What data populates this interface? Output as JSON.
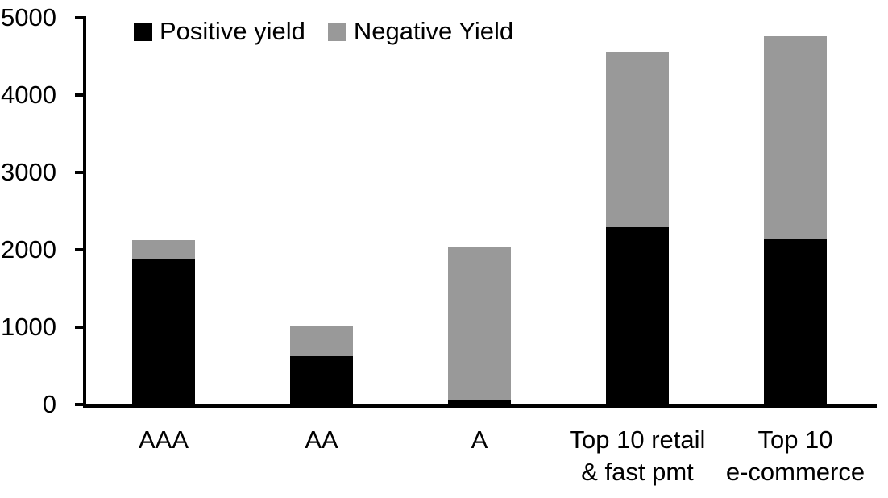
{
  "chart_data": {
    "type": "bar",
    "stacked": true,
    "title": "",
    "xlabel": "",
    "ylabel": "",
    "categories": [
      [
        "AAA"
      ],
      [
        "AA"
      ],
      [
        "A"
      ],
      [
        "Top 10 retail",
        "& fast pmt"
      ],
      [
        "Top 10",
        "e-commerce"
      ]
    ],
    "series": [
      {
        "name": "Positive yield",
        "color": "#000000",
        "values": [
          1890,
          620,
          50,
          2290,
          2140
        ]
      },
      {
        "name": "Negative Yield",
        "color": "#999999",
        "values": [
          240,
          390,
          1990,
          2270,
          2620
        ]
      }
    ],
    "totals": [
      2130,
      1010,
      2040,
      4560,
      4760
    ],
    "ylim": [
      0,
      5000
    ],
    "yticks": [
      "0",
      "1000",
      "2000",
      "3000",
      "4000",
      "5000"
    ],
    "legend_position": "top",
    "grid": false,
    "axis_color": "#000000",
    "background_color": "#ffffff"
  }
}
